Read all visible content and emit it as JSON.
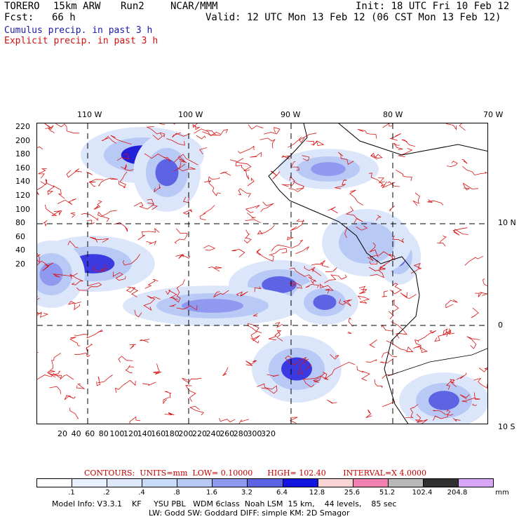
{
  "header": {
    "model": "TORERO",
    "resolution": "15km ARW",
    "run": "Run2",
    "org": "NCAR/MMM",
    "init": "Init: 18 UTC Fri 10 Feb 12",
    "fcst_label": "Fcst:",
    "fcst_value": "66 h",
    "valid": "Valid: 12 UTC Mon 13 Feb 12 (06 CST Mon 13 Feb 12)",
    "legend_cumulus": "Cumulus precip. in past 3 h",
    "legend_explicit": "Explicit precip. in past 3 h"
  },
  "axes": {
    "top_lon": [
      "110 W",
      "100 W",
      "90 W",
      "80 W",
      "70 W"
    ],
    "right_lat": [
      "10 N",
      "0",
      "10 S"
    ],
    "left_y": [
      "220",
      "200",
      "180",
      "160",
      "140",
      "120",
      "100",
      "80",
      "60",
      "40",
      "20"
    ],
    "bottom_x": [
      "20",
      "40",
      "60",
      "80",
      "100",
      "120",
      "140",
      "160",
      "180",
      "200",
      "220",
      "240",
      "260",
      "280",
      "300",
      "320"
    ]
  },
  "contours": {
    "label": "CONTOURS:",
    "units": "UNITS=mm",
    "low": "LOW= 0.10000",
    "high": "HIGH= 102.40",
    "interval": "INTERVAL=X 4.0000"
  },
  "colorbar": {
    "labels": [
      ".1",
      ".2",
      ".4",
      ".8",
      "1.6",
      "3.2",
      "6.4",
      "12.8",
      "25.6",
      "51.2",
      "102.4",
      "204.8"
    ],
    "unit": "mm",
    "colors": [
      "#ffffff",
      "#e8f0ff",
      "#dde8fb",
      "#c9dcf7",
      "#b7c9f4",
      "#8f99ef",
      "#5d64e4",
      "#1414e0",
      "#fbd5d5",
      "#f080b0",
      "#b8b8b8",
      "#303030",
      "#d8a6f6"
    ]
  },
  "footer": {
    "line1": "Model Info: V3.3.1    KF     YSU PBL   WDM 6class  Noah LSM  15 km,    44 levels,    85 sec",
    "line2": "LW: Godd SW: Goddard DIFF: simple KM: 2D Smagor"
  }
}
